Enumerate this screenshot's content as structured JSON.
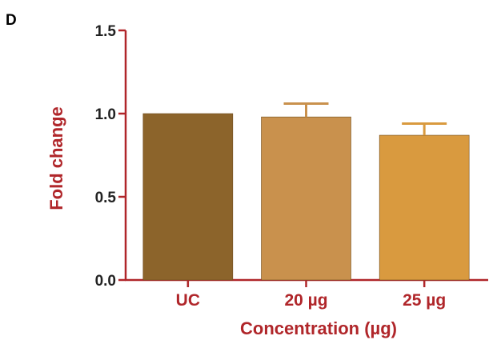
{
  "panel_label": "D",
  "chart_data": {
    "type": "bar",
    "categories": [
      "UC",
      "20 µg",
      "25 µg"
    ],
    "values": [
      1.0,
      0.98,
      0.87
    ],
    "error": [
      0.0,
      0.08,
      0.07
    ],
    "bar_colors": [
      "#8c642b",
      "#c9914d",
      "#d99a3f"
    ],
    "axis_color": "#b0262a",
    "xlabel": "Concentration (µg)",
    "ylabel": "Fold change",
    "ylim": [
      0,
      1.5
    ],
    "yticks": [
      "0.0",
      "0.5",
      "1.0",
      "1.5"
    ],
    "grid": false
  }
}
